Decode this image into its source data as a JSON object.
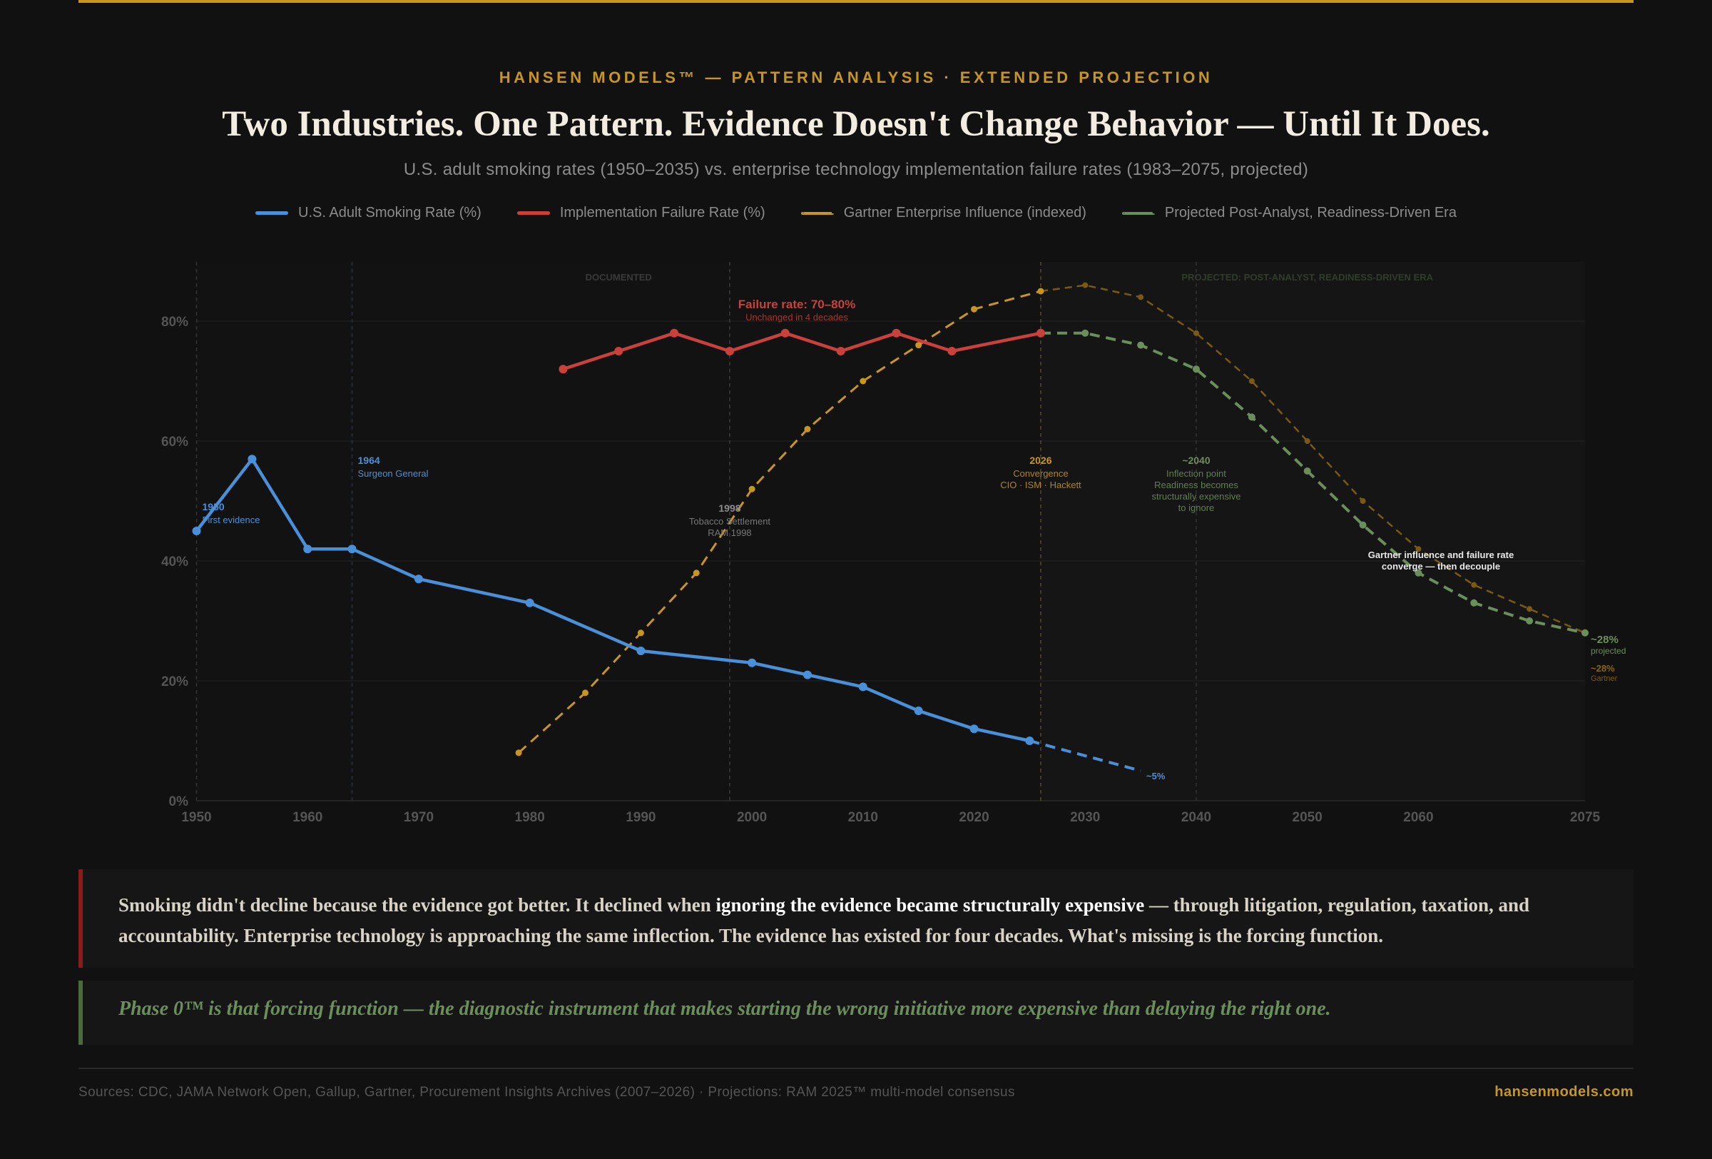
{
  "header": {
    "eyebrow": "HANSEN MODELS™ — PATTERN ANALYSIS · EXTENDED PROJECTION",
    "title": "Two Industries. One Pattern. Evidence Doesn't Change Behavior — Until It Does.",
    "subtitle": "U.S. adult smoking rates (1950–2035) vs. enterprise technology implementation failure rates (1983–2075, projected)"
  },
  "colors": {
    "accent": "#c8961e",
    "smoking": "#4a90d9",
    "failure": "#c9413a",
    "gartner": "#c8961e",
    "projected": "#6b8f5a",
    "background": "#111111"
  },
  "chart_data": {
    "type": "line",
    "xlim": [
      1950,
      2075
    ],
    "ylim": [
      0,
      90
    ],
    "x_ticks": [
      1950,
      1960,
      1970,
      1980,
      1990,
      2000,
      2010,
      2020,
      2030,
      2040,
      2050,
      2060,
      2075
    ],
    "y_ticks": [
      0,
      20,
      40,
      60,
      80
    ],
    "y_tick_labels": [
      "0%",
      "20%",
      "40%",
      "60%",
      "80%"
    ],
    "grid": "horizontal",
    "legend_placement": "top",
    "regions": [
      {
        "label": "DOCUMENTED",
        "from": 1950,
        "to": 2026
      },
      {
        "label": "PROJECTED: POST-ANALYST, READINESS-DRIVEN ERA",
        "from": 2026,
        "to": 2075
      }
    ],
    "series": [
      {
        "name": "U.S. Adult Smoking Rate (%)",
        "style": "solid",
        "x": [
          1950,
          1955,
          1960,
          1964,
          1970,
          1980,
          1990,
          2000,
          2005,
          2010,
          2015,
          2020,
          2025
        ],
        "y": [
          45,
          57,
          42,
          42,
          37,
          33,
          25,
          23,
          21,
          19,
          15,
          12,
          10
        ],
        "projection": {
          "x": [
            2025,
            2035
          ],
          "y": [
            10,
            5
          ]
        }
      },
      {
        "name": "Implementation Failure Rate (%)",
        "style": "solid",
        "x": [
          1983,
          1988,
          1993,
          1998,
          2003,
          2008,
          2013,
          2018,
          2026
        ],
        "y": [
          72,
          75,
          78,
          75,
          78,
          75,
          78,
          75,
          78
        ]
      },
      {
        "name": "Gartner Enterprise Influence (indexed)",
        "style": "dashed",
        "x": [
          1979,
          1985,
          1990,
          1995,
          2000,
          2005,
          2010,
          2015,
          2020,
          2026
        ],
        "y": [
          8,
          18,
          28,
          38,
          52,
          62,
          70,
          76,
          82,
          85
        ],
        "projection": {
          "x": [
            2026,
            2030,
            2035,
            2040,
            2045,
            2050,
            2055,
            2060,
            2065,
            2070,
            2075
          ],
          "y": [
            85,
            86,
            84,
            78,
            70,
            60,
            50,
            42,
            36,
            32,
            28
          ]
        }
      },
      {
        "name": "Projected Post-Analyst, Readiness-Driven Era",
        "style": "dashed",
        "x": [
          2026,
          2030,
          2035,
          2040,
          2045,
          2050,
          2055,
          2060,
          2065,
          2070,
          2075
        ],
        "y": [
          78,
          78,
          76,
          72,
          64,
          55,
          46,
          38,
          33,
          30,
          28
        ]
      }
    ],
    "markers": [
      {
        "year": 1950,
        "lines": [
          "1950",
          "First evidence"
        ]
      },
      {
        "year": 1964,
        "lines": [
          "1964",
          "Surgeon General"
        ]
      },
      {
        "year": 1998,
        "lines": [
          "1998",
          "Tobacco Settlement",
          "RAM 1998"
        ]
      },
      {
        "year": 2026,
        "lines": [
          "2026",
          "Convergence",
          "CIO · ISM · Hackett"
        ]
      },
      {
        "year": 2040,
        "lines": [
          "~2040",
          "Inflection point",
          "Readiness becomes",
          "structurally expensive",
          "to ignore"
        ]
      }
    ],
    "annotations": {
      "failure_title": "Failure rate: 70–80%",
      "failure_sub": "Unchanged in 4 decades",
      "converge_1": "Gartner influence and failure rate",
      "converge_2": "converge — then decouple",
      "smoking_end": "~5%",
      "projected_end": "~28%",
      "projected_end_sub": "projected",
      "gartner_end": "~28%",
      "gartner_end_sub": "Gartner"
    }
  },
  "callout": {
    "part1": "Smoking didn't decline because the evidence got better. It declined when ",
    "highlight": "ignoring the evidence became structurally expensive",
    "part2": " — through litigation, regulation, taxation, and accountability. Enterprise technology is approaching the same inflection. The evidence has existed for four decades. What's missing is the forcing function."
  },
  "tagline": "Phase 0™ is that forcing function — the diagnostic instrument that makes starting the wrong initiative more expensive than delaying the right one.",
  "footer": {
    "sources": "Sources: CDC, JAMA Network Open, Gallup, Gartner, Procurement Insights Archives (2007–2026) · Projections: RAM 2025™ multi-model consensus",
    "site": "hansenmodels.com"
  }
}
